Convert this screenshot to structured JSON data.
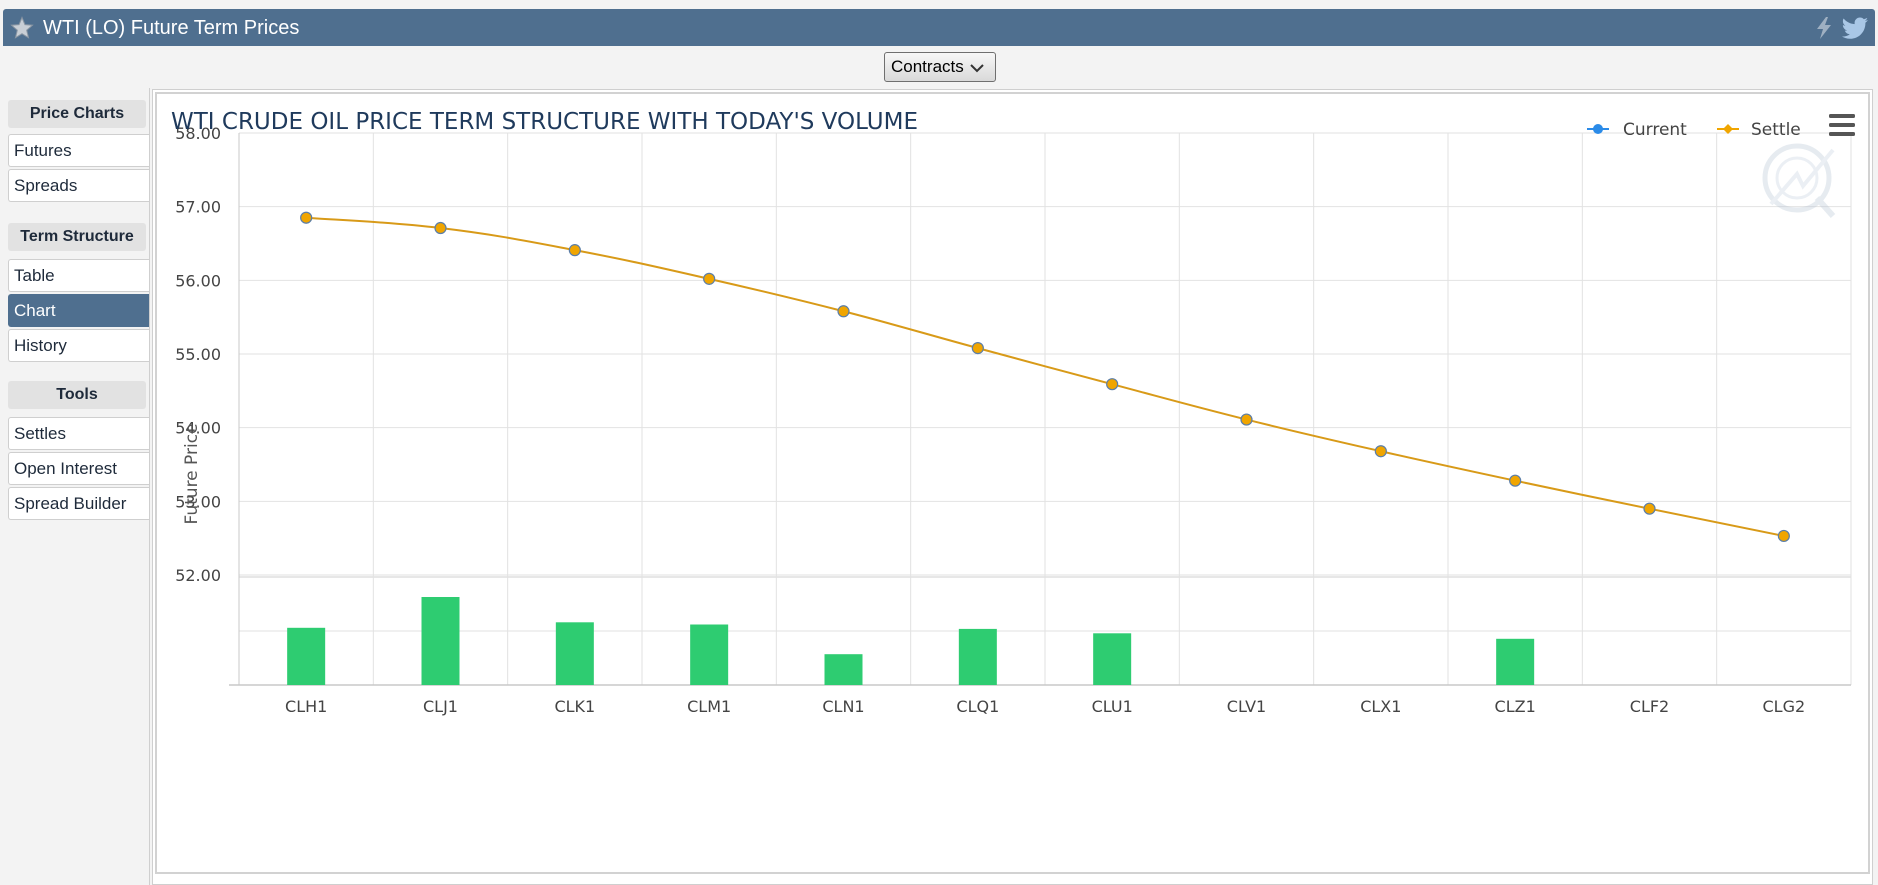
{
  "header": {
    "title": "WTI (LO) Future Term Prices"
  },
  "toolbar": {
    "contracts_label": "Contracts"
  },
  "sidebar": {
    "sections": [
      {
        "heading": "Price Charts",
        "items": [
          "Futures",
          "Spreads"
        ]
      },
      {
        "heading": "Term Structure",
        "items": [
          "Table",
          "Chart",
          "History"
        ]
      },
      {
        "heading": "Tools",
        "items": [
          "Settles",
          "Open Interest",
          "Spread Builder"
        ]
      }
    ],
    "active_item": "Chart"
  },
  "colors": {
    "header_bg": "#4f6f8f",
    "current": "#2b8be8",
    "settle": "#f0a500",
    "line": "#d89a18",
    "volume": "#2ecc71"
  },
  "icons": [
    "star-icon",
    "lightning-icon",
    "twitter-icon",
    "chevron-down-icon",
    "hamburger-menu-icon",
    "watermark-logo"
  ],
  "chart_data": {
    "type": "line",
    "title": "WTI CRUDE OIL PRICE TERM STRUCTURE WITH TODAY'S VOLUME",
    "ylabel": "Future Price",
    "ylim": [
      52.0,
      58.0
    ],
    "yticks": [
      "58.00",
      "57.00",
      "56.00",
      "55.00",
      "54.00",
      "53.00",
      "52.00"
    ],
    "categories": [
      "CLH1",
      "CLJ1",
      "CLK1",
      "CLM1",
      "CLN1",
      "CLQ1",
      "CLU1",
      "CLV1",
      "CLX1",
      "CLZ1",
      "CLF2",
      "CLG2"
    ],
    "legend": [
      "Current",
      "Settle"
    ],
    "legend_position": "top-right",
    "grid": true,
    "series": [
      {
        "name": "Settle",
        "values": [
          56.85,
          56.71,
          56.41,
          56.02,
          55.58,
          55.08,
          54.59,
          54.11,
          53.68,
          53.28,
          52.9,
          52.53
        ]
      }
    ],
    "volume_relative": [
      0.52,
      0.8,
      0.57,
      0.55,
      0.28,
      0.51,
      0.47,
      0,
      0,
      0.42,
      0,
      0
    ]
  }
}
